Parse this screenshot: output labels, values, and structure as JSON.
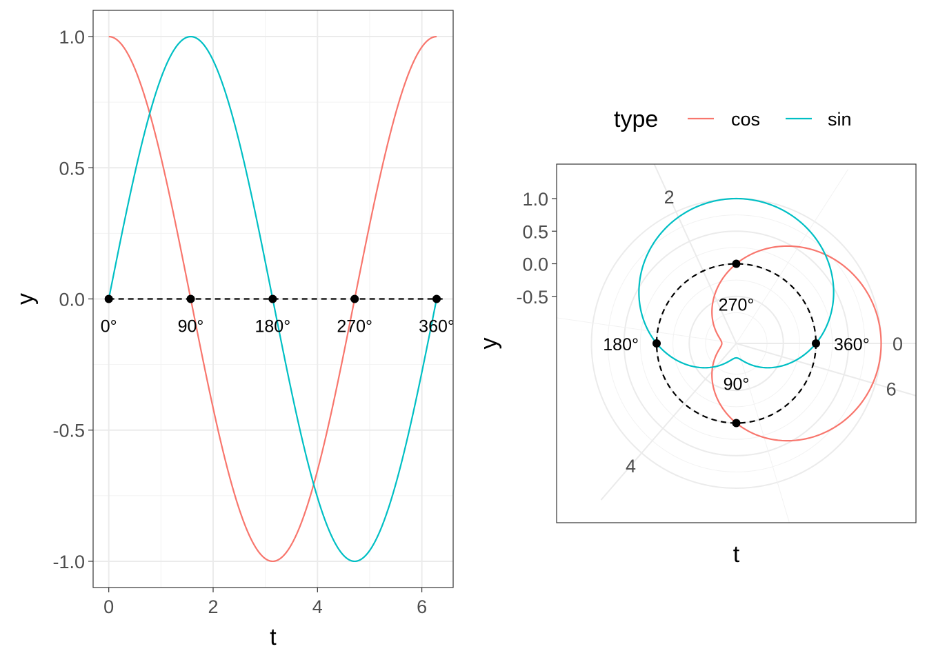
{
  "chart_data": [
    {
      "type": "line",
      "coord": "cartesian",
      "xlabel": "t",
      "ylabel": "y",
      "xlim": [
        -0.3,
        6.6
      ],
      "ylim": [
        -1.1,
        1.1
      ],
      "x_ticks": [
        0,
        2,
        4,
        6
      ],
      "y_ticks": [
        -1.0,
        -0.5,
        0.0,
        0.5,
        1.0
      ],
      "y_tick_labels": [
        "-1.0",
        "-0.5",
        "0.0",
        "0.5",
        "1.0"
      ],
      "x_tick_labels": [
        "0",
        "2",
        "4",
        "6"
      ],
      "grid": true,
      "series": [
        {
          "name": "cos",
          "function": "cos(t)",
          "t_range": [
            0,
            6.2832
          ],
          "color": "#F8766D"
        },
        {
          "name": "sin",
          "function": "sin(t)",
          "t_range": [
            0,
            6.2832
          ],
          "color": "#00BFC4"
        }
      ],
      "reference_line": {
        "y": 0,
        "x_range": [
          0,
          6.4
        ],
        "style": "dashed",
        "color": "#000000"
      },
      "points": [
        {
          "x": 0,
          "y": 0,
          "label": "0°"
        },
        {
          "x": 1.5708,
          "y": 0,
          "label": "90°"
        },
        {
          "x": 3.1416,
          "y": 0,
          "label": "180°"
        },
        {
          "x": 4.7124,
          "y": 0,
          "label": "270°"
        },
        {
          "x": 6.2832,
          "y": 0,
          "label": "360°"
        }
      ]
    },
    {
      "type": "line",
      "coord": "polar",
      "xlabel": "t",
      "ylabel": "y",
      "theta_var": "t",
      "theta_range": [
        0,
        6.2832
      ],
      "r_range": [
        -1.0,
        1.0
      ],
      "r_ticks": [
        -0.5,
        0.0,
        0.5,
        1.0
      ],
      "r_tick_labels": [
        "-0.5",
        "0.0",
        "0.5",
        "1.0"
      ],
      "theta_ticks": [
        0,
        2,
        4,
        6
      ],
      "theta_tick_labels": [
        "0",
        "2",
        "4",
        "6"
      ],
      "grid": true,
      "series": [
        {
          "name": "cos",
          "function": "cos(t)",
          "color": "#F8766D"
        },
        {
          "name": "sin",
          "function": "sin(t)",
          "color": "#00BFC4"
        }
      ],
      "reference_line": {
        "y": 0,
        "style": "dashed",
        "color": "#000000"
      },
      "points": [
        {
          "x": 0,
          "y": 0,
          "label": "360°"
        },
        {
          "x": 1.5708,
          "y": 0,
          "label": "270°"
        },
        {
          "x": 3.1416,
          "y": 0,
          "label": "180°"
        },
        {
          "x": 4.7124,
          "y": 0,
          "label": "90°"
        }
      ]
    }
  ],
  "legend": {
    "title": "type",
    "items": [
      {
        "label": "cos",
        "color": "#F8766D"
      },
      {
        "label": "sin",
        "color": "#00BFC4"
      }
    ],
    "placement": "top"
  }
}
